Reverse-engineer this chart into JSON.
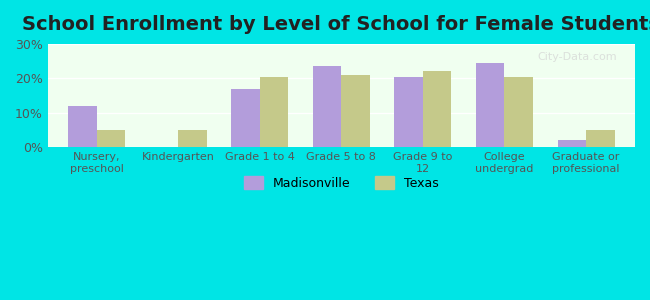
{
  "title": "School Enrollment by Level of School for Female Students",
  "categories": [
    "Nursery,\npreschool",
    "Kindergarten",
    "Grade 1 to 4",
    "Grade 5 to 8",
    "Grade 9 to\n12",
    "College\nundergrad",
    "Graduate or\nprofessional"
  ],
  "madisonville": [
    12.0,
    0.0,
    17.0,
    23.5,
    20.5,
    24.5,
    2.0
  ],
  "texas": [
    5.0,
    5.0,
    20.5,
    21.0,
    22.0,
    20.5,
    5.0
  ],
  "madisonville_color": "#b39ddb",
  "texas_color": "#c5c98a",
  "background_outer": "#00e5e5",
  "background_inner": "#f0fff0",
  "ylim": [
    0,
    30
  ],
  "yticks": [
    0,
    10,
    20,
    30
  ],
  "legend_labels": [
    "Madisonville",
    "Texas"
  ],
  "bar_width": 0.35,
  "title_fontsize": 14
}
